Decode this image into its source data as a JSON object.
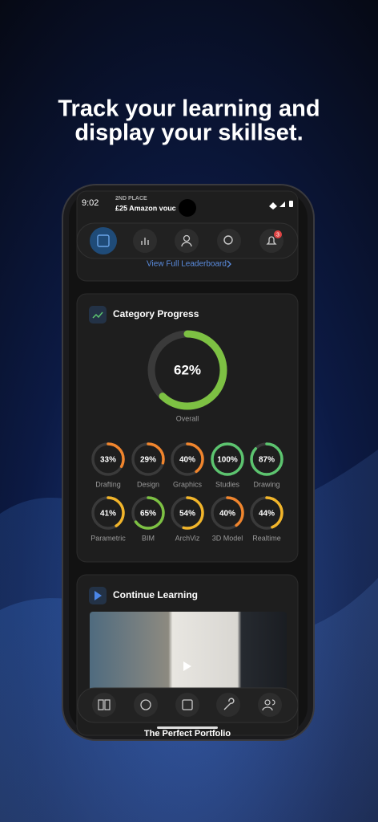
{
  "headline": [
    "Track your learning and",
    "display your skillset."
  ],
  "status_bar": {
    "time": "9:02"
  },
  "notification": {
    "kicker": "2ND PLACE",
    "text": "£25 Amazon vouc"
  },
  "top_nav": {
    "badge": "3"
  },
  "leaderboard": {
    "link": "View Full Leaderboard"
  },
  "category_progress": {
    "title": "Category Progress",
    "overall": {
      "label": "Overall",
      "value": 62,
      "value_label": "62%",
      "color": "#7dc143"
    },
    "skills": [
      {
        "label": "Drafting",
        "value": 33,
        "value_label": "33%",
        "color": "#f0852d"
      },
      {
        "label": "Design",
        "value": 29,
        "value_label": "29%",
        "color": "#f0852d"
      },
      {
        "label": "Graphics",
        "value": 40,
        "value_label": "40%",
        "color": "#f0852d"
      },
      {
        "label": "Studies",
        "value": 100,
        "value_label": "100%",
        "color": "#5cc46f"
      },
      {
        "label": "Drawing",
        "value": 87,
        "value_label": "87%",
        "color": "#5cc46f"
      },
      {
        "label": "Parametric",
        "value": 41,
        "value_label": "41%",
        "color": "#f2b52a"
      },
      {
        "label": "BIM",
        "value": 65,
        "value_label": "65%",
        "color": "#7dc143"
      },
      {
        "label": "ArchViz",
        "value": 54,
        "value_label": "54%",
        "color": "#f2b52a"
      },
      {
        "label": "3D Model",
        "value": 40,
        "value_label": "40%",
        "color": "#f0852d"
      },
      {
        "label": "Realtime",
        "value": 44,
        "value_label": "44%",
        "color": "#f2b52a"
      }
    ]
  },
  "continue_learning": {
    "title": "Continue Learning",
    "course": "The Perfect Portfolio"
  }
}
